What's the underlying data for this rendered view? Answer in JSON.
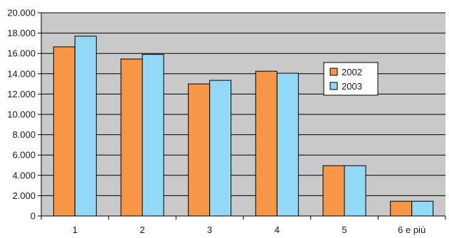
{
  "chart_data": {
    "type": "bar",
    "categories": [
      "1",
      "2",
      "3",
      "4",
      "5",
      "6 e più"
    ],
    "series": [
      {
        "name": "2002",
        "values": [
          16650,
          15450,
          13000,
          14250,
          4950,
          1450
        ]
      },
      {
        "name": "2003",
        "values": [
          17700,
          15900,
          13350,
          14050,
          4950,
          1450
        ]
      }
    ],
    "y_tick_labels": [
      "0",
      "2.000",
      "4.000",
      "6.000",
      "8.000",
      "10.000",
      "12.000",
      "14.000",
      "16.000",
      "18.000",
      "20.000"
    ],
    "ylim": [
      0,
      20000
    ],
    "title": "",
    "xlabel": "",
    "ylabel": "",
    "grid": true,
    "legend_position": "right-center",
    "colors": {
      "series_2002": "#F79646",
      "series_2003": "#92D8F7",
      "plot_background": "#C9C9C9",
      "gridline": "#000000"
    }
  }
}
